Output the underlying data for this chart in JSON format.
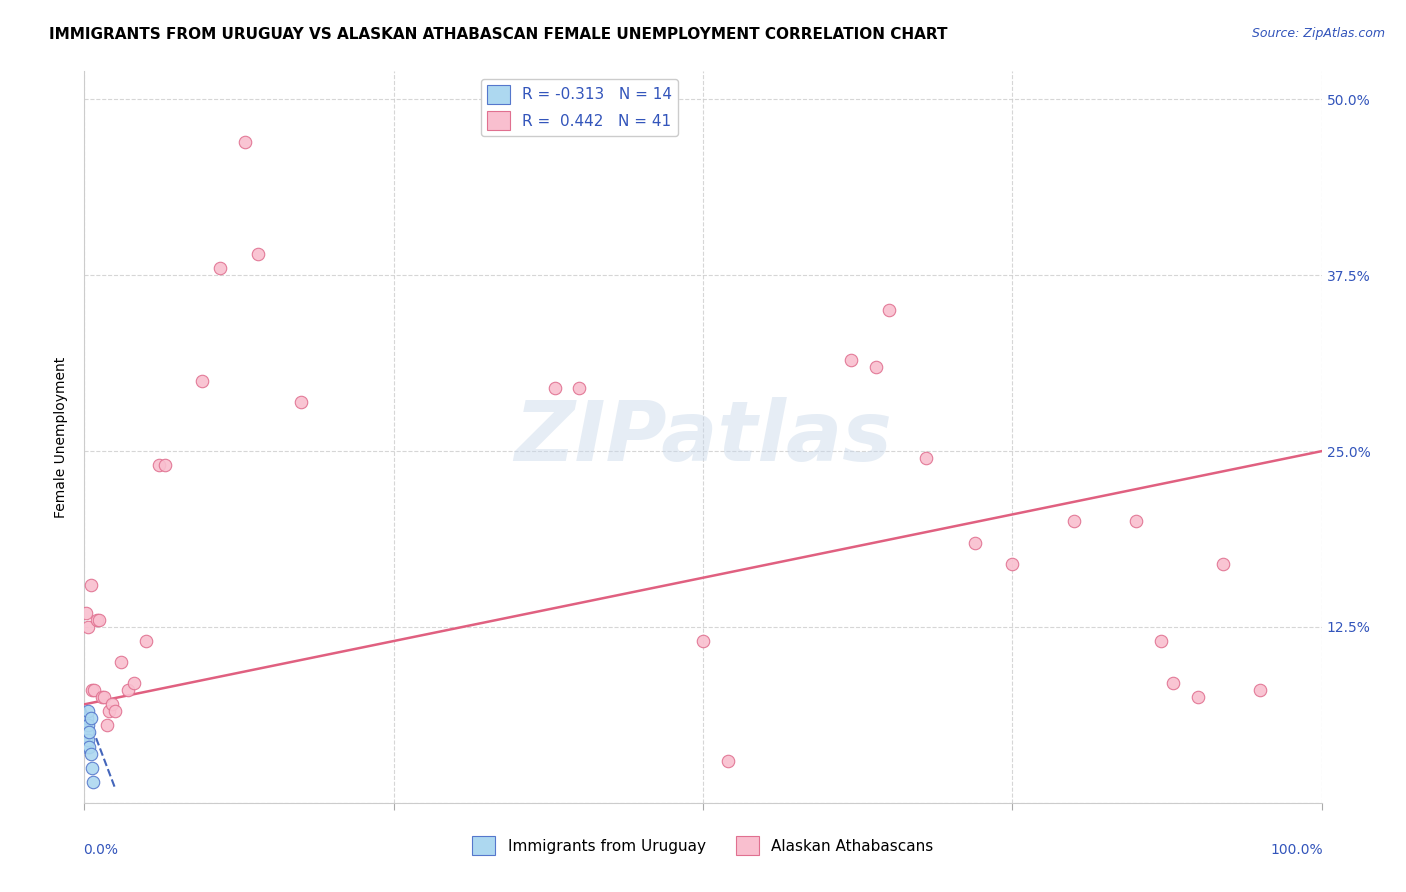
{
  "title": "IMMIGRANTS FROM URUGUAY VS ALASKAN ATHABASCAN FEMALE UNEMPLOYMENT CORRELATION CHART",
  "source": "Source: ZipAtlas.com",
  "ylabel": "Female Unemployment",
  "yticks": [
    0.0,
    0.125,
    0.25,
    0.375,
    0.5
  ],
  "ytick_labels": [
    "",
    "12.5%",
    "25.0%",
    "37.5%",
    "50.0%"
  ],
  "xlim": [
    0.0,
    1.0
  ],
  "ylim": [
    0.0,
    0.52
  ],
  "legend_R1": "R = -0.313",
  "legend_N1": "N = 14",
  "legend_R2": "R =  0.442",
  "legend_N2": "N = 41",
  "watermark": "ZIPatlas",
  "blue_scatter_x": [
    0.001,
    0.001,
    0.002,
    0.002,
    0.002,
    0.003,
    0.003,
    0.003,
    0.004,
    0.004,
    0.005,
    0.005,
    0.006,
    0.007
  ],
  "blue_scatter_y": [
    0.055,
    0.045,
    0.06,
    0.05,
    0.04,
    0.065,
    0.055,
    0.045,
    0.05,
    0.04,
    0.06,
    0.035,
    0.025,
    0.015
  ],
  "pink_scatter_x": [
    0.001,
    0.003,
    0.005,
    0.006,
    0.008,
    0.01,
    0.012,
    0.014,
    0.016,
    0.018,
    0.02,
    0.022,
    0.025,
    0.03,
    0.035,
    0.04,
    0.05,
    0.06,
    0.065,
    0.095,
    0.11,
    0.13,
    0.14,
    0.175,
    0.38,
    0.4,
    0.5,
    0.52,
    0.62,
    0.64,
    0.65,
    0.68,
    0.72,
    0.75,
    0.8,
    0.85,
    0.87,
    0.88,
    0.9,
    0.92,
    0.95
  ],
  "pink_scatter_y": [
    0.135,
    0.125,
    0.155,
    0.08,
    0.08,
    0.13,
    0.13,
    0.075,
    0.075,
    0.055,
    0.065,
    0.07,
    0.065,
    0.1,
    0.08,
    0.085,
    0.115,
    0.24,
    0.24,
    0.3,
    0.38,
    0.47,
    0.39,
    0.285,
    0.295,
    0.295,
    0.115,
    0.03,
    0.315,
    0.31,
    0.35,
    0.245,
    0.185,
    0.17,
    0.2,
    0.2,
    0.115,
    0.085,
    0.075,
    0.17,
    0.08
  ],
  "blue_color": "#add8f0",
  "pink_color": "#f9bfcf",
  "blue_edge_color": "#5577cc",
  "pink_edge_color": "#e07090",
  "blue_line_color": "#4466bb",
  "pink_line_color": "#e06080",
  "title_fontsize": 11,
  "axis_label_fontsize": 10,
  "tick_fontsize": 10,
  "source_fontsize": 9,
  "watermark_fontsize": 60,
  "marker_size": 9,
  "pink_line_x0": 0.0,
  "pink_line_y0": 0.07,
  "pink_line_x1": 1.0,
  "pink_line_y1": 0.25,
  "blue_line_x0": 0.0,
  "blue_line_y0": 0.068,
  "blue_line_x1": 0.025,
  "blue_line_y1": 0.01
}
